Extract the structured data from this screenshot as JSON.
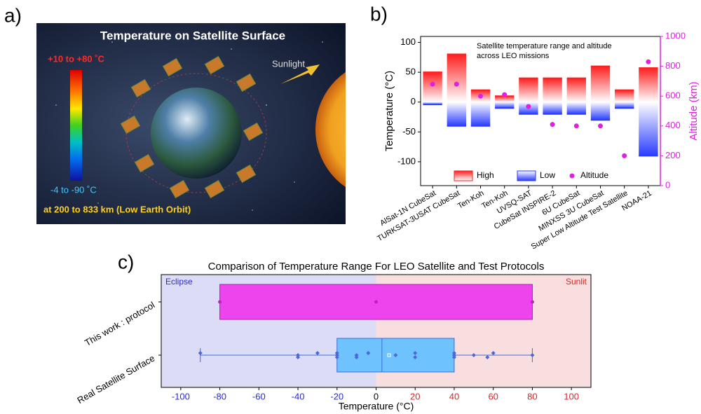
{
  "illustration": {
    "panel_label": "a)",
    "title": "Temperature on Satellite Surface",
    "hot_label": "+10 to +80 ˚C",
    "cold_label": "-4 to -90 ˚C",
    "orbit_label": "at 200 to 833 km (Low Earth Orbit)",
    "sunlight_label": "Sunlight"
  },
  "chart_data": [
    {
      "type": "range-bar",
      "panel_label": "b)",
      "annotation": [
        "Satellite temperature range and altitude",
        "across LEO missions"
      ],
      "ylabel": "Temperature (°C)",
      "y2label": "Altitude (km)",
      "categories": [
        "AlSat-1N CubeSat",
        "TURKSAT-3USAT CubeSat",
        "Ten-Koh",
        "Ten-Koh",
        "UVSQ-SAT",
        "CubeSat INSPIRE-2",
        "6U CubeSat",
        "MINXSS 3U CubeSat",
        "Super Low Altitude Test Satellite",
        "NOAA-21"
      ],
      "series": [
        {
          "name": "High",
          "color": "#ff1f1f",
          "values": [
            50,
            80,
            20,
            10,
            40,
            40,
            40,
            60,
            20,
            57
          ]
        },
        {
          "name": "Low",
          "color": "#2a3cff",
          "values": [
            -4,
            -40,
            -40,
            -10,
            -20,
            -20,
            -20,
            -30,
            -10,
            -90
          ]
        },
        {
          "name": "Altitude",
          "color": "#e020e0",
          "axis": "y2",
          "values": [
            680,
            680,
            600,
            610,
            530,
            410,
            400,
            400,
            200,
            830
          ]
        }
      ],
      "ylim": [
        -140,
        110
      ],
      "yticks": [
        -100,
        -50,
        0,
        50,
        100
      ],
      "y2lim": [
        0,
        1000
      ],
      "y2ticks": [
        0,
        200,
        400,
        600,
        800,
        1000
      ],
      "legend": "lower center"
    },
    {
      "type": "box",
      "panel_label": "c)",
      "title": "Comparison of Temperature Range For LEO Satellite and Test Protocols",
      "xlabel": "Temperature (°C)",
      "categories": [
        "Real Satellite Surface",
        "This work : protocol"
      ],
      "xlim": [
        -110,
        110
      ],
      "xticks": [
        -100,
        -80,
        -60,
        -40,
        -20,
        0,
        20,
        40,
        60,
        80,
        100
      ],
      "split": 0,
      "regions": [
        {
          "label": "Eclipse",
          "color": "#dcdcf6"
        },
        {
          "label": "Sunlit",
          "color": "#f8dede"
        }
      ],
      "box": {
        "min": -90,
        "q1": -20,
        "median": 3,
        "q3": 40,
        "max": 80,
        "mean": 6.65,
        "color": "#6ec3ff",
        "points": [
          -90,
          -40,
          -40,
          -30,
          -20,
          -20,
          -20,
          -10,
          -10,
          -4,
          10,
          20,
          20,
          40,
          40,
          40,
          50,
          57,
          60,
          80
        ]
      },
      "range": {
        "min": -80,
        "max": 80,
        "color": "#ee44ee",
        "points": [
          -80,
          0,
          80
        ]
      }
    }
  ]
}
